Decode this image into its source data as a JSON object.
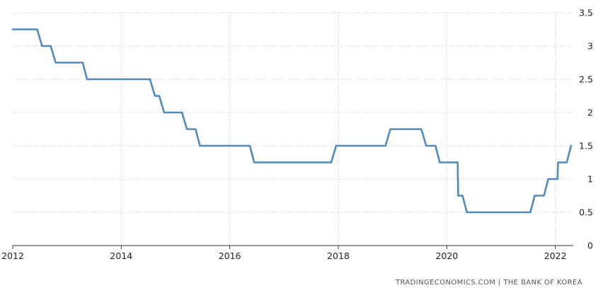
{
  "chart_data": {
    "type": "line",
    "title": "",
    "xlabel": "",
    "ylabel": "",
    "xlim": [
      2012.0,
      2022.33
    ],
    "ylim": [
      0,
      3.5
    ],
    "x_ticks": [
      2012,
      2014,
      2016,
      2018,
      2020,
      2022
    ],
    "y_ticks": [
      0,
      0.5,
      1,
      1.5,
      2,
      2.5,
      3,
      3.5
    ],
    "y_tick_labels": [
      "0",
      "0.5",
      "1",
      "1.5",
      "2",
      "2.5",
      "3",
      "3.5"
    ],
    "y_axis_position": "right",
    "grid": true,
    "legend": "none",
    "color": "#4f8ac0",
    "source_text": "TRADINGECONOMICS.COM  |  THE BANK OF KOREA",
    "series": [
      {
        "x": [
          2012.0,
          2012.45,
          2012.54,
          2012.7,
          2012.79,
          2013.29,
          2013.37,
          2014.53,
          2014.62,
          2014.7,
          2014.79,
          2015.12,
          2015.21,
          2015.37,
          2015.45,
          2016.37,
          2016.45,
          2017.87,
          2017.96,
          2018.87,
          2018.96,
          2019.53,
          2019.62,
          2019.79,
          2019.87,
          2020.2,
          2020.21,
          2020.29,
          2020.37,
          2020.45,
          2021.54,
          2021.62,
          2021.79,
          2021.87,
          2022.04,
          2022.05,
          2022.11,
          2022.21,
          2022.29
        ],
        "y": [
          3.25,
          3.25,
          3.0,
          3.0,
          2.75,
          2.75,
          2.5,
          2.5,
          2.25,
          2.25,
          2.0,
          2.0,
          1.75,
          1.75,
          1.5,
          1.5,
          1.25,
          1.25,
          1.5,
          1.5,
          1.75,
          1.75,
          1.5,
          1.5,
          1.25,
          1.25,
          0.75,
          0.75,
          0.5,
          0.5,
          0.5,
          0.75,
          0.75,
          1.0,
          1.0,
          1.25,
          1.25,
          1.25,
          1.5
        ]
      }
    ]
  }
}
